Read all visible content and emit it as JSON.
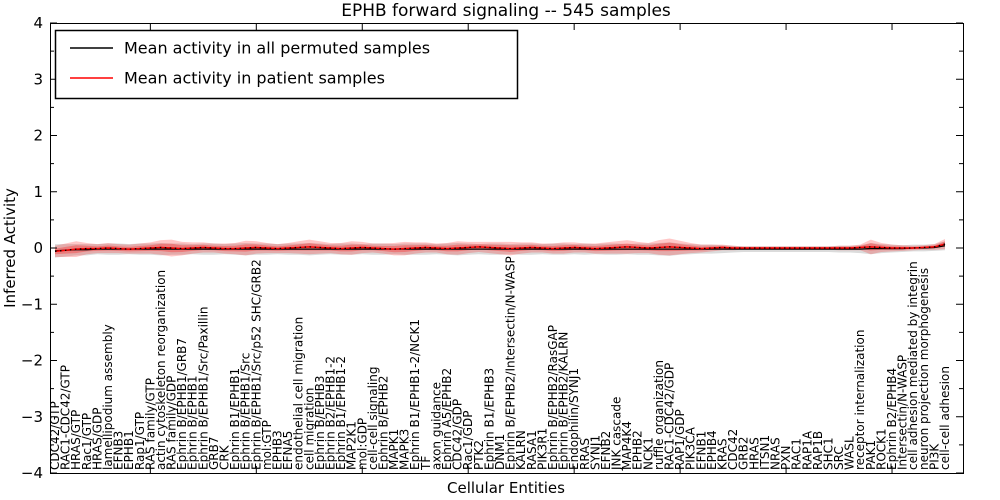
{
  "title": "EPHB forward signaling -- 545 samples",
  "legend": {
    "items": [
      {
        "label": "Mean activity in all permuted samples",
        "color": "#000000"
      },
      {
        "label": "Mean activity in patient samples",
        "color": "#ff0000"
      }
    ]
  },
  "colors": {
    "axis": "#000000",
    "permuted_line": "#000000",
    "patient_line": "#ff0000",
    "permuted_band": "#000000",
    "permuted_band_opacity": 0.14,
    "patient_band": "#ff0000",
    "patient_band_opacity": 0.22,
    "patient_band_inner_opacity": 0.28,
    "background": "#ffffff"
  },
  "chart_data": {
    "type": "line",
    "title": "EPHB forward signaling -- 545 samples",
    "xlabel": "Cellular Entities",
    "ylabel": "Inferred Activity",
    "ylim": [
      -4,
      4
    ],
    "yticks": [
      -4,
      -3,
      -2,
      -1,
      0,
      1,
      2,
      3,
      4
    ],
    "ytick_labels": [
      "−4",
      "−3",
      "−2",
      "−1",
      "0",
      "1",
      "2",
      "3",
      "4"
    ],
    "grid": false,
    "legend_position": "upper left",
    "categories": [
      "CDC42/GTP",
      "RAC1-CDC42/GTP",
      "HRAS/GTP",
      "Rac1/GTP",
      "HRAS/GDP",
      "lamellipodium assembly",
      "EFNB3",
      "EPHB1",
      "Rap1/GTP",
      "RAS family/GTP",
      "actin cytoskeleton reorganization",
      "RAS family/GDP",
      "Ephrin B/EPHB1/GRB7",
      "Ephrin B/EPHB1",
      "Ephrin B/EPHB1/Src/Paxillin",
      "GRB7",
      "CRK",
      "Ephrin B1/EPHB1",
      "Ephrin B/EPHB1/Src",
      "Ephrin B/EPHB1/Src/p52 SHC/GRB2",
      "mol:GTP",
      "EPHB3",
      "EFNA5",
      "endothelial cell migration",
      "cell migration",
      "Ephrin B/EPHB3",
      "Ephrin B2/EPHB1-2",
      "Ephrin B1/EPHB1-2",
      "MAP2K1",
      "mol:GDP",
      "cell-cell signaling",
      "Ephrin B/EPHB2",
      "MAPK1",
      "MAPK3",
      "Ephrin B1/EPHB1-2/NCK1",
      "TF",
      "axon guidance",
      "Ephrin A5/EPHB2",
      "CDC42/GDP",
      "Rac1/GDP",
      "PTK2",
      "Ephrin B1/EPHB3",
      "DNM1",
      "Ephrin B/EPHB2/Intersectin/N-WASP",
      "KALRN",
      "RASA1",
      "PIK3R1",
      "Ephrin B/EPHB2/RasGAP",
      "Ephrin B/EPHB2/KALRN",
      "Endophilin/SYNJ1",
      "RRAS",
      "SYNJ1",
      "EFNB2",
      "JNK cascade",
      "MAP4K4",
      "EPHB2",
      "NCK1",
      "ruffle organization",
      "RAC1-CDC42/GDP",
      "RAP1/GDP",
      "PIK3CA",
      "EFNB1",
      "EPHB4",
      "KRAS",
      "CDC42",
      "GRB2",
      "HRAS",
      "ITSN1",
      "NRAS",
      "PXN",
      "RAC1",
      "RAP1A",
      "RAP1B",
      "SHC1",
      "SRC",
      "WASL",
      "receptor internalization",
      "PAK1",
      "ROCK1",
      "Ephrin B2/EPHB4",
      "Intersectin/N-WASP",
      "cell adhesion mediated by integrin",
      "neuron projection morphogenesis",
      "PI3K",
      "cell-cell adhesion"
    ],
    "series": [
      {
        "name": "Mean activity in all permuted samples",
        "color": "#000000",
        "style": "solid",
        "values": [
          -0.05,
          -0.04,
          -0.03,
          -0.03,
          -0.02,
          -0.02,
          -0.02,
          -0.02,
          -0.02,
          -0.02,
          -0.02,
          -0.02,
          -0.02,
          -0.02,
          -0.02,
          -0.02,
          -0.02,
          -0.02,
          -0.02,
          -0.02,
          -0.02,
          -0.02,
          -0.02,
          -0.02,
          -0.02,
          -0.02,
          -0.02,
          -0.02,
          -0.02,
          -0.02,
          -0.02,
          -0.02,
          -0.02,
          -0.02,
          -0.02,
          -0.02,
          -0.02,
          -0.02,
          -0.02,
          -0.02,
          -0.02,
          -0.02,
          -0.02,
          -0.02,
          -0.02,
          -0.02,
          -0.02,
          -0.02,
          -0.02,
          -0.02,
          -0.02,
          -0.02,
          -0.02,
          -0.02,
          -0.02,
          -0.02,
          -0.02,
          -0.02,
          -0.02,
          -0.02,
          -0.02,
          -0.02,
          -0.02,
          -0.02,
          -0.02,
          -0.02,
          -0.02,
          -0.02,
          -0.02,
          -0.02,
          -0.02,
          -0.02,
          -0.02,
          -0.02,
          -0.02,
          -0.02,
          -0.02,
          -0.01,
          -0.01,
          -0.01,
          -0.01,
          0.0,
          0.0,
          0.01,
          0.04
        ]
      },
      {
        "name": "Mean activity in patient samples",
        "color": "#ff0000",
        "style": "solid",
        "values": [
          -0.06,
          -0.04,
          -0.02,
          -0.01,
          -0.01,
          0.0,
          -0.01,
          -0.02,
          -0.01,
          0.0,
          0.01,
          0.0,
          -0.01,
          0.0,
          0.01,
          0.0,
          -0.01,
          -0.01,
          0.0,
          0.01,
          0.0,
          -0.01,
          0.0,
          0.01,
          0.02,
          0.01,
          0.0,
          -0.01,
          0.0,
          0.01,
          0.0,
          -0.01,
          -0.02,
          -0.01,
          0.0,
          0.01,
          0.0,
          -0.01,
          0.0,
          0.01,
          0.02,
          0.01,
          0.0,
          -0.01,
          0.0,
          0.01,
          0.0,
          -0.01,
          0.0,
          0.01,
          0.0,
          -0.01,
          0.0,
          0.01,
          0.02,
          0.01,
          0.0,
          0.01,
          0.02,
          0.01,
          0.0,
          -0.01,
          0.0,
          0.01,
          0.0,
          0.0,
          0.0,
          0.0,
          0.0,
          0.0,
          0.0,
          0.0,
          0.0,
          0.0,
          0.0,
          0.0,
          0.01,
          0.02,
          0.01,
          0.0,
          0.0,
          0.0,
          0.01,
          0.02,
          0.07
        ]
      }
    ],
    "bands": [
      {
        "name": "permuted-range",
        "center_series": 0,
        "color_key": "permuted",
        "half_widths": [
          0.12,
          0.11,
          0.1,
          0.1,
          0.09,
          0.1,
          0.1,
          0.09,
          0.1,
          0.1,
          0.11,
          0.1,
          0.1,
          0.09,
          0.1,
          0.1,
          0.09,
          0.1,
          0.11,
          0.1,
          0.1,
          0.09,
          0.1,
          0.1,
          0.11,
          0.1,
          0.09,
          0.1,
          0.1,
          0.09,
          0.1,
          0.1,
          0.09,
          0.1,
          0.1,
          0.1,
          0.09,
          0.1,
          0.11,
          0.1,
          0.09,
          0.1,
          0.1,
          0.09,
          0.1,
          0.1,
          0.09,
          0.1,
          0.1,
          0.09,
          0.1,
          0.09,
          0.1,
          0.1,
          0.09,
          0.1,
          0.1,
          0.11,
          0.12,
          0.1,
          0.09,
          0.08,
          0.08,
          0.07,
          0.06,
          0.05,
          0.05,
          0.05,
          0.05,
          0.05,
          0.05,
          0.05,
          0.05,
          0.05,
          0.06,
          0.06,
          0.07,
          0.1,
          0.08,
          0.07,
          0.06,
          0.06,
          0.06,
          0.06,
          0.08
        ]
      },
      {
        "name": "patient-range",
        "center_series": 1,
        "color_key": "patient",
        "half_widths": [
          0.1,
          0.12,
          0.14,
          0.1,
          0.08,
          0.09,
          0.08,
          0.08,
          0.09,
          0.1,
          0.13,
          0.15,
          0.12,
          0.1,
          0.09,
          0.08,
          0.09,
          0.1,
          0.13,
          0.11,
          0.09,
          0.08,
          0.09,
          0.11,
          0.13,
          0.11,
          0.09,
          0.1,
          0.12,
          0.1,
          0.08,
          0.09,
          0.11,
          0.12,
          0.1,
          0.09,
          0.08,
          0.1,
          0.12,
          0.1,
          0.09,
          0.1,
          0.11,
          0.12,
          0.1,
          0.09,
          0.08,
          0.09,
          0.1,
          0.09,
          0.08,
          0.09,
          0.1,
          0.11,
          0.12,
          0.1,
          0.09,
          0.13,
          0.15,
          0.12,
          0.09,
          0.07,
          0.06,
          0.05,
          0.04,
          0.03,
          0.03,
          0.03,
          0.03,
          0.03,
          0.03,
          0.03,
          0.03,
          0.03,
          0.04,
          0.04,
          0.05,
          0.13,
          0.08,
          0.06,
          0.05,
          0.04,
          0.04,
          0.05,
          0.09
        ]
      }
    ],
    "x_major_tick_indices": [
      9,
      19,
      29,
      39,
      49,
      59,
      69,
      79
    ]
  }
}
